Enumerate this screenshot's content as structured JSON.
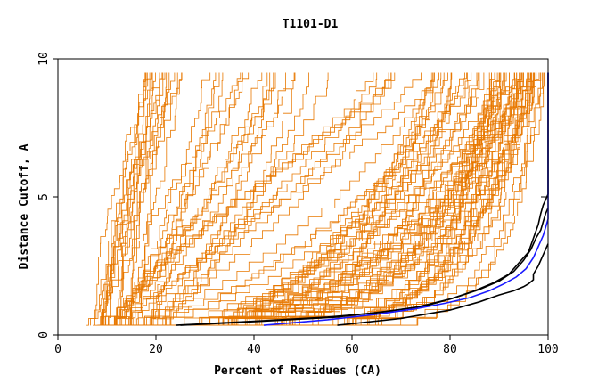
{
  "chart_data": {
    "type": "line",
    "title": "T1101-D1",
    "xlabel": "Percent of Residues (CA)",
    "ylabel": "Distance Cutoff, A",
    "xlim": [
      0,
      100
    ],
    "ylim": [
      0,
      10
    ],
    "x_ticks": [
      "0",
      "20",
      "40",
      "60",
      "80",
      "100"
    ],
    "y_ticks": [
      "0",
      "5",
      "10"
    ],
    "grid": false,
    "colors": {
      "background_curves": "#e87800",
      "highlight_black": "#000000",
      "highlight_blue": "#1a1aff"
    },
    "orange_series_count": 110,
    "series": [
      {
        "color": "#000000",
        "x": [
          24,
          40,
          55,
          65,
          73,
          80,
          85,
          89,
          92,
          94,
          96,
          97,
          98,
          98.5,
          99,
          99.5,
          100,
          100
        ],
        "y": [
          0.35,
          0.5,
          0.65,
          0.8,
          1.0,
          1.3,
          1.6,
          1.9,
          2.2,
          2.6,
          3.0,
          3.5,
          4.0,
          4.4,
          4.7,
          4.9,
          5.1,
          9.5
        ]
      },
      {
        "color": "#000000",
        "x": [
          25,
          42,
          57,
          67,
          75,
          81,
          86,
          90,
          93,
          95,
          96.5,
          97.5,
          98.5,
          99,
          99.5,
          100
        ],
        "y": [
          0.35,
          0.5,
          0.65,
          0.85,
          1.05,
          1.35,
          1.65,
          1.95,
          2.3,
          2.7,
          3.1,
          3.5,
          3.8,
          4.1,
          4.4,
          4.6
        ]
      },
      {
        "color": "#000000",
        "x": [
          57,
          70,
          80,
          86,
          90,
          93,
          95,
          96,
          97,
          97,
          98,
          99,
          100
        ],
        "y": [
          0.35,
          0.6,
          0.9,
          1.2,
          1.45,
          1.6,
          1.75,
          1.85,
          2.0,
          2.2,
          2.5,
          2.9,
          3.3
        ]
      },
      {
        "color": "#1a1aff",
        "x": [
          42,
          55,
          65,
          73,
          79,
          84,
          88,
          91,
          93.5,
          95.5,
          97,
          98,
          99,
          99.5,
          100,
          100
        ],
        "y": [
          0.35,
          0.55,
          0.75,
          0.95,
          1.15,
          1.35,
          1.6,
          1.85,
          2.1,
          2.4,
          2.8,
          3.2,
          3.6,
          3.9,
          4.2,
          9.5
        ]
      }
    ]
  }
}
